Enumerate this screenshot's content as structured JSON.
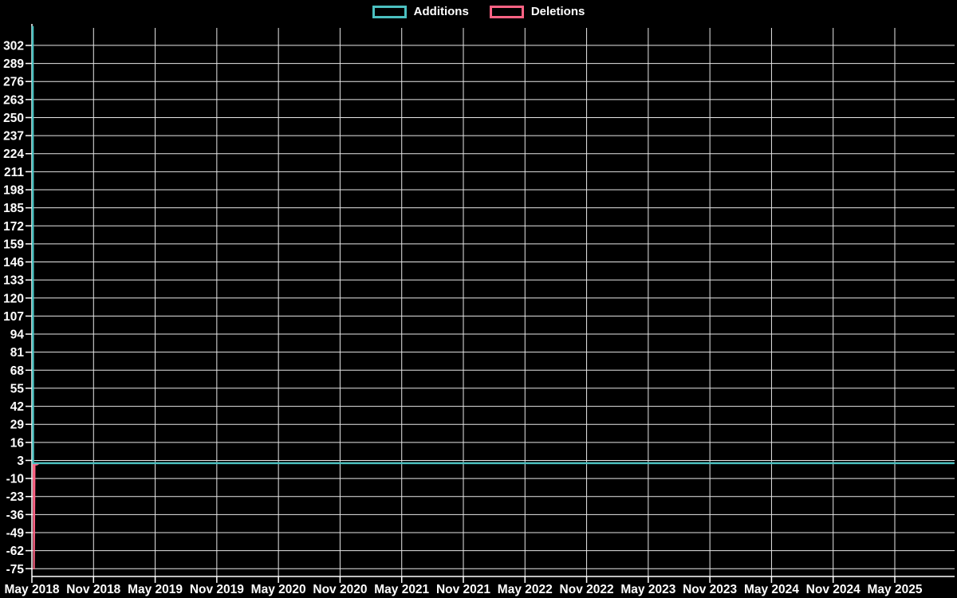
{
  "page": {
    "background": "#000000",
    "text_color": "#ffffff"
  },
  "chart_data": {
    "type": "line",
    "title": "",
    "legend_position": "top",
    "grid": true,
    "grid_color": "#e8e8e8",
    "axis_color": "#ffffff",
    "background": "#000000",
    "text_color": "#ffffff",
    "x_axis_note": "time from May 2018 to May 2025, ticks every 6 months",
    "x_tick_labels": [
      "May 2018",
      "Nov 2018",
      "May 2019",
      "Nov 2019",
      "May 2020",
      "Nov 2020",
      "May 2021",
      "Nov 2021",
      "May 2022",
      "Nov 2022",
      "May 2023",
      "Nov 2023",
      "May 2024",
      "Nov 2024",
      "May 2025"
    ],
    "y_tick_labels": [
      302,
      289,
      276,
      263,
      250,
      237,
      224,
      211,
      198,
      185,
      172,
      159,
      146,
      133,
      120,
      107,
      94,
      81,
      68,
      55,
      42,
      29,
      16,
      3,
      -10,
      -23,
      -36,
      -49,
      -62,
      -75
    ],
    "y_range": [
      -80.6,
      314.6
    ],
    "series": [
      {
        "name": "Additions",
        "color": "#4bc0c0",
        "stroke_width": 2.5,
        "points_tick_value": [
          [
            0.013,
            316
          ],
          [
            0.019,
            1
          ],
          [
            14.968,
            1
          ]
        ],
        "summary": "Vertical spike to ~315 (clipped at plot top) at May 2018, then flat at ~1 through May 2025"
      },
      {
        "name": "Deletions",
        "color": "#ff6384",
        "stroke_width": 2,
        "points_tick_value": [
          [
            0.026,
            1
          ],
          [
            0.033,
            -75
          ],
          [
            0.045,
            0
          ],
          [
            0.08,
            0
          ],
          [
            0.12,
            1
          ],
          [
            14.968,
            1
          ]
        ],
        "summary": "Vertical spike down to -75 at May 2018, then flat near 0-1, hidden beneath the Additions line"
      }
    ]
  }
}
